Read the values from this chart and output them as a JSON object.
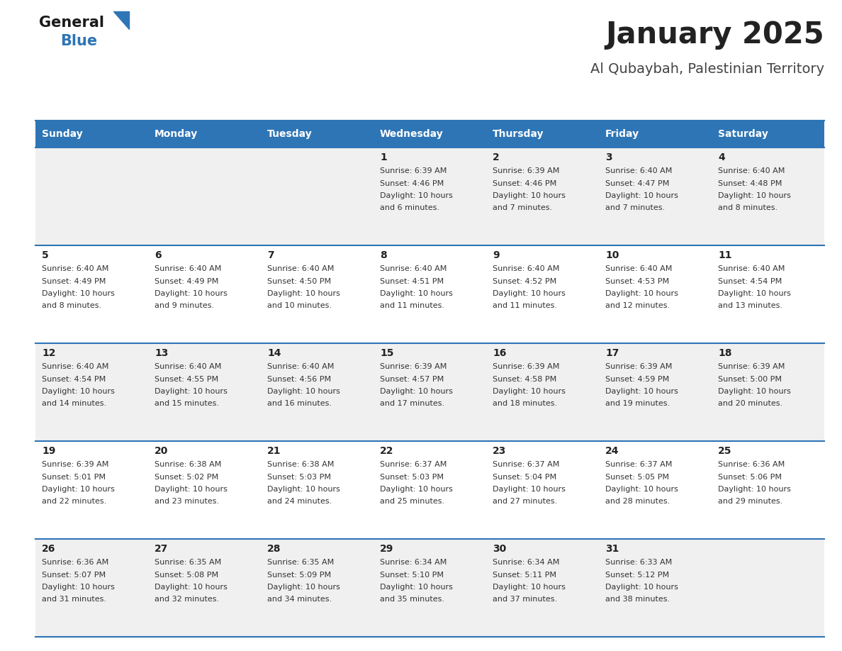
{
  "title": "January 2025",
  "subtitle": "Al Qubaybah, Palestinian Territory",
  "days_of_week": [
    "Sunday",
    "Monday",
    "Tuesday",
    "Wednesday",
    "Thursday",
    "Friday",
    "Saturday"
  ],
  "header_bg": "#2e75b6",
  "header_text": "#ffffff",
  "row_bg_odd": "#f0f0f0",
  "row_bg_even": "#ffffff",
  "cell_border": "#2e75b6",
  "day_num_color": "#222222",
  "info_color": "#333333",
  "title_color": "#222222",
  "subtitle_color": "#444444",
  "calendar": [
    [
      {
        "day": "",
        "sunrise": "",
        "sunset": "",
        "daylight": ""
      },
      {
        "day": "",
        "sunrise": "",
        "sunset": "",
        "daylight": ""
      },
      {
        "day": "",
        "sunrise": "",
        "sunset": "",
        "daylight": ""
      },
      {
        "day": "1",
        "sunrise": "6:39 AM",
        "sunset": "4:46 PM",
        "daylight": "10 hours and 6 minutes."
      },
      {
        "day": "2",
        "sunrise": "6:39 AM",
        "sunset": "4:46 PM",
        "daylight": "10 hours and 7 minutes."
      },
      {
        "day": "3",
        "sunrise": "6:40 AM",
        "sunset": "4:47 PM",
        "daylight": "10 hours and 7 minutes."
      },
      {
        "day": "4",
        "sunrise": "6:40 AM",
        "sunset": "4:48 PM",
        "daylight": "10 hours and 8 minutes."
      }
    ],
    [
      {
        "day": "5",
        "sunrise": "6:40 AM",
        "sunset": "4:49 PM",
        "daylight": "10 hours and 8 minutes."
      },
      {
        "day": "6",
        "sunrise": "6:40 AM",
        "sunset": "4:49 PM",
        "daylight": "10 hours and 9 minutes."
      },
      {
        "day": "7",
        "sunrise": "6:40 AM",
        "sunset": "4:50 PM",
        "daylight": "10 hours and 10 minutes."
      },
      {
        "day": "8",
        "sunrise": "6:40 AM",
        "sunset": "4:51 PM",
        "daylight": "10 hours and 11 minutes."
      },
      {
        "day": "9",
        "sunrise": "6:40 AM",
        "sunset": "4:52 PM",
        "daylight": "10 hours and 11 minutes."
      },
      {
        "day": "10",
        "sunrise": "6:40 AM",
        "sunset": "4:53 PM",
        "daylight": "10 hours and 12 minutes."
      },
      {
        "day": "11",
        "sunrise": "6:40 AM",
        "sunset": "4:54 PM",
        "daylight": "10 hours and 13 minutes."
      }
    ],
    [
      {
        "day": "12",
        "sunrise": "6:40 AM",
        "sunset": "4:54 PM",
        "daylight": "10 hours and 14 minutes."
      },
      {
        "day": "13",
        "sunrise": "6:40 AM",
        "sunset": "4:55 PM",
        "daylight": "10 hours and 15 minutes."
      },
      {
        "day": "14",
        "sunrise": "6:40 AM",
        "sunset": "4:56 PM",
        "daylight": "10 hours and 16 minutes."
      },
      {
        "day": "15",
        "sunrise": "6:39 AM",
        "sunset": "4:57 PM",
        "daylight": "10 hours and 17 minutes."
      },
      {
        "day": "16",
        "sunrise": "6:39 AM",
        "sunset": "4:58 PM",
        "daylight": "10 hours and 18 minutes."
      },
      {
        "day": "17",
        "sunrise": "6:39 AM",
        "sunset": "4:59 PM",
        "daylight": "10 hours and 19 minutes."
      },
      {
        "day": "18",
        "sunrise": "6:39 AM",
        "sunset": "5:00 PM",
        "daylight": "10 hours and 20 minutes."
      }
    ],
    [
      {
        "day": "19",
        "sunrise": "6:39 AM",
        "sunset": "5:01 PM",
        "daylight": "10 hours and 22 minutes."
      },
      {
        "day": "20",
        "sunrise": "6:38 AM",
        "sunset": "5:02 PM",
        "daylight": "10 hours and 23 minutes."
      },
      {
        "day": "21",
        "sunrise": "6:38 AM",
        "sunset": "5:03 PM",
        "daylight": "10 hours and 24 minutes."
      },
      {
        "day": "22",
        "sunrise": "6:37 AM",
        "sunset": "5:03 PM",
        "daylight": "10 hours and 25 minutes."
      },
      {
        "day": "23",
        "sunrise": "6:37 AM",
        "sunset": "5:04 PM",
        "daylight": "10 hours and 27 minutes."
      },
      {
        "day": "24",
        "sunrise": "6:37 AM",
        "sunset": "5:05 PM",
        "daylight": "10 hours and 28 minutes."
      },
      {
        "day": "25",
        "sunrise": "6:36 AM",
        "sunset": "5:06 PM",
        "daylight": "10 hours and 29 minutes."
      }
    ],
    [
      {
        "day": "26",
        "sunrise": "6:36 AM",
        "sunset": "5:07 PM",
        "daylight": "10 hours and 31 minutes."
      },
      {
        "day": "27",
        "sunrise": "6:35 AM",
        "sunset": "5:08 PM",
        "daylight": "10 hours and 32 minutes."
      },
      {
        "day": "28",
        "sunrise": "6:35 AM",
        "sunset": "5:09 PM",
        "daylight": "10 hours and 34 minutes."
      },
      {
        "day": "29",
        "sunrise": "6:34 AM",
        "sunset": "5:10 PM",
        "daylight": "10 hours and 35 minutes."
      },
      {
        "day": "30",
        "sunrise": "6:34 AM",
        "sunset": "5:11 PM",
        "daylight": "10 hours and 37 minutes."
      },
      {
        "day": "31",
        "sunrise": "6:33 AM",
        "sunset": "5:12 PM",
        "daylight": "10 hours and 38 minutes."
      },
      {
        "day": "",
        "sunrise": "",
        "sunset": "",
        "daylight": ""
      }
    ]
  ]
}
